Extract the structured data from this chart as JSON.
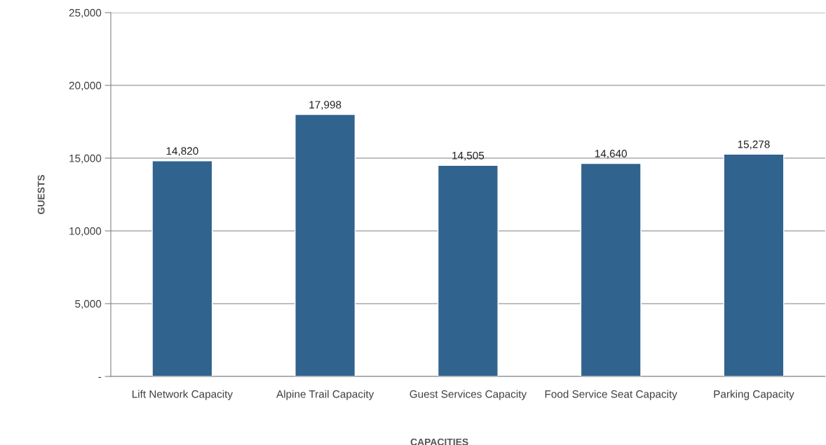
{
  "chart_data": {
    "type": "bar",
    "categories": [
      "Lift Network Capacity",
      "Alpine Trail Capacity",
      "Guest Services Capacity",
      "Food Service Seat Capacity",
      "Parking Capacity"
    ],
    "values": [
      14820,
      17998,
      14505,
      14640,
      15278
    ],
    "color": "#31638f",
    "xlabel": "CAPACITIES",
    "ylabel": "GUESTS",
    "ylim": [
      0,
      25000
    ],
    "yticks": [
      {
        "value": 0,
        "label": "-"
      },
      {
        "value": 5000,
        "label": "5,000"
      },
      {
        "value": 10000,
        "label": "10,000"
      },
      {
        "value": 15000,
        "label": "15,000"
      },
      {
        "value": 20000,
        "label": "20,000"
      },
      {
        "value": 25000,
        "label": "25,000"
      }
    ],
    "grid": "y",
    "value_labels": [
      "14,820",
      "17,998",
      "14,505",
      "14,640",
      "15,278"
    ]
  }
}
